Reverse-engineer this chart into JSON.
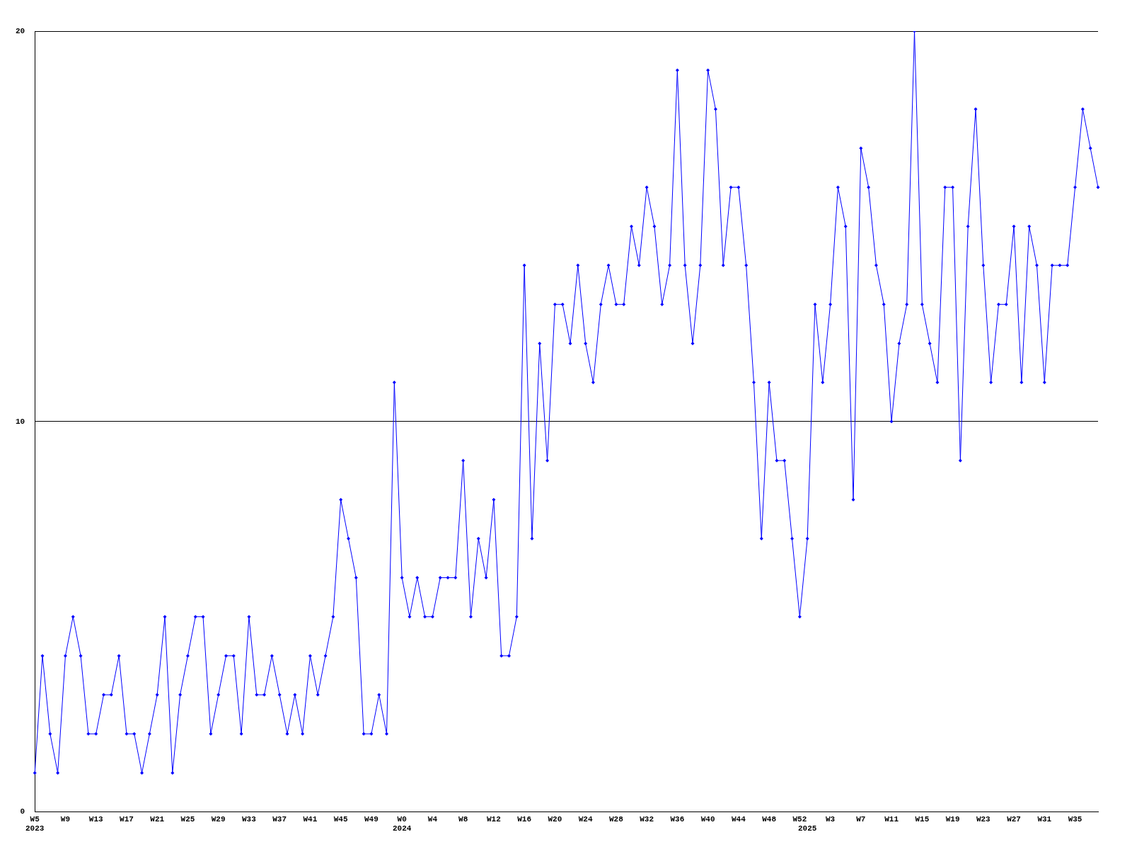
{
  "chart_data": {
    "type": "line",
    "categories": [
      "W5\n2023",
      null,
      null,
      null,
      "W9",
      null,
      null,
      null,
      "W13",
      null,
      null,
      null,
      "W17",
      null,
      null,
      null,
      "W21",
      null,
      null,
      null,
      "W25",
      null,
      null,
      null,
      "W29",
      null,
      null,
      null,
      "W33",
      null,
      null,
      null,
      "W37",
      null,
      null,
      null,
      "W41",
      null,
      null,
      null,
      "W45",
      null,
      null,
      null,
      "W49",
      null,
      null,
      null,
      "W0\n2024",
      null,
      null,
      null,
      "W4",
      null,
      null,
      null,
      "W8",
      null,
      null,
      null,
      "W12",
      null,
      null,
      null,
      "W16",
      null,
      null,
      null,
      "W20",
      null,
      null,
      null,
      "W24",
      null,
      null,
      null,
      "W28",
      null,
      null,
      null,
      "W32",
      null,
      null,
      null,
      "W36",
      null,
      null,
      null,
      "W40",
      null,
      null,
      null,
      "W44",
      null,
      null,
      null,
      "W48",
      null,
      null,
      null,
      "W52",
      "\n2025",
      null,
      null,
      "W3",
      null,
      null,
      null,
      "W7",
      null,
      null,
      null,
      "W11",
      null,
      null,
      null,
      "W15",
      null,
      null,
      null,
      "W19",
      null,
      null,
      null,
      "W23",
      null,
      null,
      null,
      "W27",
      null,
      null,
      null,
      "W31",
      null,
      null,
      null,
      "W35",
      null,
      null,
      null
    ],
    "series": [
      {
        "color": "#0000ff",
        "values": [
          1,
          4,
          2,
          1,
          4,
          5,
          4,
          2,
          2,
          3,
          3,
          4,
          2,
          2,
          1,
          2,
          3,
          5,
          1,
          3,
          4,
          5,
          5,
          2,
          3,
          4,
          4,
          2,
          5,
          3,
          3,
          4,
          3,
          2,
          3,
          2,
          4,
          3,
          4,
          5,
          8,
          7,
          6,
          2,
          2,
          3,
          2,
          11,
          6,
          5,
          6,
          5,
          5,
          6,
          6,
          6,
          9,
          5,
          7,
          6,
          8,
          4,
          4,
          5,
          14,
          7,
          12,
          9,
          13,
          13,
          12,
          14,
          12,
          11,
          13,
          14,
          13,
          13,
          15,
          14,
          16,
          15,
          13,
          14,
          19,
          14,
          12,
          14,
          19,
          18,
          14,
          16,
          16,
          14,
          11,
          7,
          11,
          9,
          9,
          7,
          5,
          7,
          13,
          11,
          13,
          16,
          15,
          8,
          17,
          16,
          14,
          13,
          10,
          12,
          13,
          20,
          13,
          12,
          11,
          16,
          16,
          9,
          15,
          18,
          14,
          11,
          13,
          13,
          15,
          11,
          15,
          14,
          11,
          14,
          14,
          14,
          16,
          18,
          17,
          16
        ]
      }
    ],
    "ylim": [
      0,
      20
    ],
    "yticks": [
      0,
      10,
      20
    ],
    "grid": "y",
    "legend": false,
    "marker": "diamond",
    "line_style": "solid"
  }
}
